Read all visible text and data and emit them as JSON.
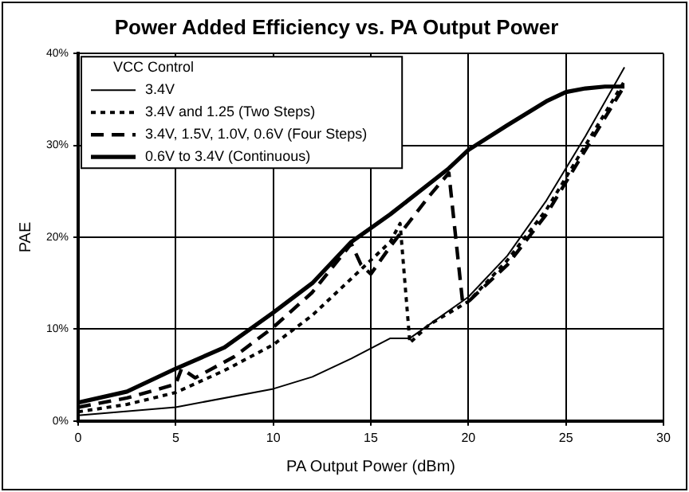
{
  "chart_data": {
    "type": "line",
    "title": "Power Added Efficiency vs. PA Output Power",
    "xlabel": "PA Output Power (dBm)",
    "ylabel": "PAE",
    "legend_title": "VCC Control",
    "legend": "top left",
    "grid": true,
    "marker": "none",
    "xlim": [
      0,
      30
    ],
    "xticks": [
      0,
      5,
      10,
      15,
      20,
      25,
      30
    ],
    "ylim": [
      0,
      40
    ],
    "yticks": [
      {
        "value": 0,
        "label": "0%"
      },
      {
        "value": 10,
        "label": "10%"
      },
      {
        "value": 20,
        "label": "20%"
      },
      {
        "value": 30,
        "label": "30%"
      },
      {
        "value": 40,
        "label": "40%"
      }
    ],
    "series": [
      {
        "name": "3.4V",
        "color": "#000000",
        "line_style": "solid",
        "x": [
          0,
          5,
          10,
          12,
          14,
          16,
          17,
          18,
          20,
          22,
          24,
          26,
          28
        ],
        "values": [
          0.6,
          1.5,
          3.5,
          4.8,
          6.8,
          9,
          9,
          10.5,
          13.5,
          18,
          24,
          31,
          38.5
        ]
      },
      {
        "name": "3.4V and 1.25 (Two Steps)",
        "color": "#000000",
        "line_style": "dotted",
        "x": [
          0,
          2.5,
          5,
          7.5,
          10,
          12,
          14,
          16,
          16.5,
          17,
          18,
          20,
          22,
          24,
          26,
          28
        ],
        "values": [
          1,
          1.8,
          3.1,
          5.5,
          8.3,
          11.5,
          15.5,
          19.5,
          21.5,
          8.5,
          10.5,
          13,
          17.5,
          23,
          30,
          37
        ]
      },
      {
        "name": "3.4V, 1.5V, 1.0V, 0.6V (Four Steps)",
        "color": "#000000",
        "line_style": "dashed",
        "x": [
          0,
          2.5,
          5,
          5.3,
          6,
          8,
          10,
          12,
          14,
          14.5,
          15,
          16,
          18,
          19,
          19.7,
          20,
          22,
          24,
          26,
          28
        ],
        "values": [
          1.5,
          2.5,
          4,
          5.7,
          4.7,
          7,
          10.2,
          14,
          19.3,
          17,
          16,
          19,
          24.5,
          27,
          13,
          13,
          17,
          22.5,
          29.5,
          36.5
        ]
      },
      {
        "name": "0.6V to 3.4V (Continuous)",
        "color": "#000000",
        "line_style": "solid",
        "x": [
          0,
          2.5,
          5,
          7.5,
          10,
          12,
          14,
          16,
          19,
          20,
          22,
          24,
          25,
          26,
          27,
          28
        ],
        "values": [
          2,
          3.2,
          5.7,
          8,
          11.8,
          15,
          19.5,
          22.5,
          27.5,
          29.5,
          32.2,
          34.8,
          35.8,
          36.2,
          36.4,
          36.4
        ]
      }
    ]
  }
}
